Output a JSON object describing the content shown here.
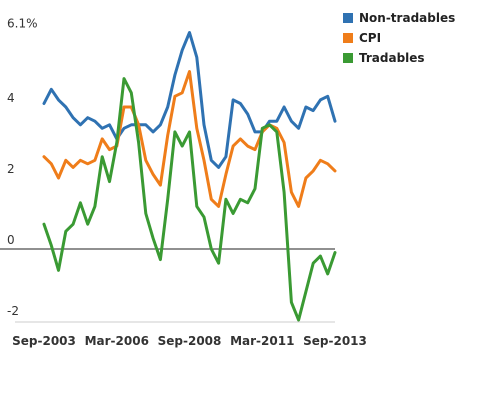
{
  "chart_data": {
    "type": "line",
    "y_ticks": [
      "6.1%",
      "4",
      "2",
      "0",
      "-2"
    ],
    "y_tick_values": [
      6.1,
      4,
      2,
      0,
      -2
    ],
    "x_tick_labels": [
      "Sep-2003",
      "Mar-2006",
      "Sep-2008",
      "Mar-2011",
      "Sep-2013"
    ],
    "x_tick_dates": [
      "2003-09",
      "2006-03",
      "2008-09",
      "2011-03",
      "2013-09"
    ],
    "ylim": [
      -2,
      6.1
    ],
    "xlim": [
      "2003-09",
      "2014-03"
    ],
    "grid": "zero-line",
    "legend_position": "top-right",
    "series": [
      {
        "name": "Non-tradables",
        "color": "#2f72b2",
        "points": [
          [
            "2003-09",
            4.1
          ],
          [
            "2003-12",
            4.5
          ],
          [
            "2004-03",
            4.2
          ],
          [
            "2004-06",
            4.0
          ],
          [
            "2004-09",
            3.7
          ],
          [
            "2004-12",
            3.5
          ],
          [
            "2005-03",
            3.7
          ],
          [
            "2005-06",
            3.6
          ],
          [
            "2005-09",
            3.4
          ],
          [
            "2005-12",
            3.5
          ],
          [
            "2006-03",
            3.1
          ],
          [
            "2006-06",
            3.4
          ],
          [
            "2006-09",
            3.5
          ],
          [
            "2006-12",
            3.5
          ],
          [
            "2007-03",
            3.5
          ],
          [
            "2007-06",
            3.3
          ],
          [
            "2007-09",
            3.5
          ],
          [
            "2007-12",
            4.0
          ],
          [
            "2008-03",
            4.9
          ],
          [
            "2008-06",
            5.6
          ],
          [
            "2008-09",
            6.1
          ],
          [
            "2008-12",
            5.4
          ],
          [
            "2009-03",
            3.5
          ],
          [
            "2009-06",
            2.5
          ],
          [
            "2009-09",
            2.3
          ],
          [
            "2009-12",
            2.6
          ],
          [
            "2010-03",
            4.2
          ],
          [
            "2010-06",
            4.1
          ],
          [
            "2010-09",
            3.8
          ],
          [
            "2010-12",
            3.3
          ],
          [
            "2011-03",
            3.3
          ],
          [
            "2011-06",
            3.6
          ],
          [
            "2011-09",
            3.6
          ],
          [
            "2011-12",
            4.0
          ],
          [
            "2012-03",
            3.6
          ],
          [
            "2012-06",
            3.4
          ],
          [
            "2012-09",
            4.0
          ],
          [
            "2012-12",
            3.9
          ],
          [
            "2013-03",
            4.2
          ],
          [
            "2013-06",
            4.3
          ],
          [
            "2013-09",
            3.6
          ]
        ]
      },
      {
        "name": "CPI",
        "color": "#ef7d1a",
        "points": [
          [
            "2003-09",
            2.6
          ],
          [
            "2003-12",
            2.4
          ],
          [
            "2004-03",
            2.0
          ],
          [
            "2004-06",
            2.5
          ],
          [
            "2004-09",
            2.3
          ],
          [
            "2004-12",
            2.5
          ],
          [
            "2005-03",
            2.4
          ],
          [
            "2005-06",
            2.5
          ],
          [
            "2005-09",
            3.1
          ],
          [
            "2005-12",
            2.8
          ],
          [
            "2006-03",
            2.9
          ],
          [
            "2006-06",
            4.0
          ],
          [
            "2006-09",
            4.0
          ],
          [
            "2006-12",
            3.5
          ],
          [
            "2007-03",
            2.5
          ],
          [
            "2007-06",
            2.1
          ],
          [
            "2007-09",
            1.8
          ],
          [
            "2007-12",
            3.2
          ],
          [
            "2008-03",
            4.3
          ],
          [
            "2008-06",
            4.4
          ],
          [
            "2008-09",
            5.0
          ],
          [
            "2008-12",
            3.4
          ],
          [
            "2009-03",
            2.5
          ],
          [
            "2009-06",
            1.4
          ],
          [
            "2009-09",
            1.2
          ],
          [
            "2009-12",
            2.1
          ],
          [
            "2010-03",
            2.9
          ],
          [
            "2010-06",
            3.1
          ],
          [
            "2010-09",
            2.9
          ],
          [
            "2010-12",
            2.8
          ],
          [
            "2011-03",
            3.3
          ],
          [
            "2011-06",
            3.5
          ],
          [
            "2011-09",
            3.4
          ],
          [
            "2011-12",
            3.0
          ],
          [
            "2012-03",
            1.6
          ],
          [
            "2012-06",
            1.2
          ],
          [
            "2012-09",
            2.0
          ],
          [
            "2012-12",
            2.2
          ],
          [
            "2013-03",
            2.5
          ],
          [
            "2013-06",
            2.4
          ],
          [
            "2013-09",
            2.2
          ]
        ]
      },
      {
        "name": "Tradables",
        "color": "#3a9a33",
        "points": [
          [
            "2003-09",
            0.7
          ],
          [
            "2003-12",
            0.1
          ],
          [
            "2004-03",
            -0.6
          ],
          [
            "2004-06",
            0.5
          ],
          [
            "2004-09",
            0.7
          ],
          [
            "2004-12",
            1.3
          ],
          [
            "2005-03",
            0.7
          ],
          [
            "2005-06",
            1.2
          ],
          [
            "2005-09",
            2.6
          ],
          [
            "2005-12",
            1.9
          ],
          [
            "2006-03",
            3.0
          ],
          [
            "2006-06",
            4.8
          ],
          [
            "2006-09",
            4.4
          ],
          [
            "2006-12",
            3.0
          ],
          [
            "2007-03",
            1.0
          ],
          [
            "2007-06",
            0.3
          ],
          [
            "2007-09",
            -0.3
          ],
          [
            "2007-12",
            1.4
          ],
          [
            "2008-03",
            3.3
          ],
          [
            "2008-06",
            2.9
          ],
          [
            "2008-09",
            3.3
          ],
          [
            "2008-12",
            1.2
          ],
          [
            "2009-03",
            0.9
          ],
          [
            "2009-06",
            0.0
          ],
          [
            "2009-09",
            -0.4
          ],
          [
            "2009-12",
            1.4
          ],
          [
            "2010-03",
            1.0
          ],
          [
            "2010-06",
            1.4
          ],
          [
            "2010-09",
            1.3
          ],
          [
            "2010-12",
            1.7
          ],
          [
            "2011-03",
            3.4
          ],
          [
            "2011-06",
            3.5
          ],
          [
            "2011-09",
            3.3
          ],
          [
            "2011-12",
            1.6
          ],
          [
            "2012-03",
            -1.5
          ],
          [
            "2012-06",
            -2.0
          ],
          [
            "2012-09",
            -1.2
          ],
          [
            "2012-12",
            -0.4
          ],
          [
            "2013-03",
            -0.2
          ],
          [
            "2013-06",
            -0.7
          ],
          [
            "2013-09",
            -0.1
          ]
        ]
      }
    ]
  }
}
